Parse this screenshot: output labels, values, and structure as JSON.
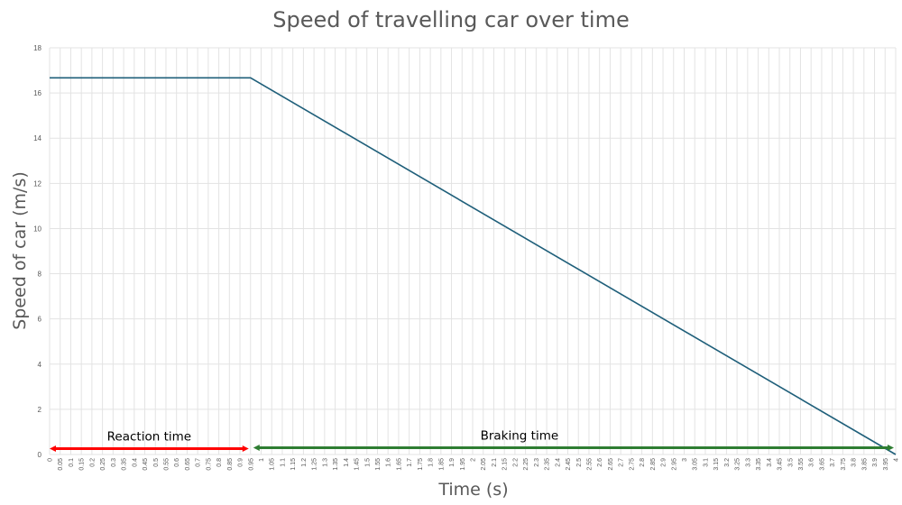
{
  "chart_data": {
    "type": "line",
    "title": "Speed of travelling car over time",
    "xlabel": "Time (s)",
    "ylabel": "Speed of car (m/s)",
    "ylim": [
      0,
      18
    ],
    "yticks": [
      0,
      2,
      4,
      6,
      8,
      10,
      12,
      14,
      16,
      18
    ],
    "xlim": [
      0,
      4
    ],
    "x_tick_step": 0.05,
    "x_tick_labels_shown": [
      "0",
      "0.05",
      "0.1",
      "0.15",
      "0.2",
      "0.25",
      "0.3",
      "0.35",
      "0.4",
      "0.45",
      "0.5",
      "0.55",
      "0.6",
      "0.65",
      "0.7",
      "0.75",
      "0.8",
      "0.85",
      "0.9",
      "0.95",
      "1",
      "1.05",
      "1.1",
      "1.15",
      "1.2",
      "1.25",
      "1.3",
      "1.35",
      "1.4",
      "1.45",
      "1.5",
      "1.55",
      "1.6",
      "1.65",
      "1.7",
      "1.75",
      "1.8",
      "1.85",
      "1.9",
      "1.95",
      "2",
      "2.05",
      "2.1",
      "2.15",
      "2.2",
      "2.25",
      "2.3",
      "2.35",
      "2.4",
      "2.45",
      "2.5",
      "2.55",
      "2.6",
      "2.65",
      "2.7",
      "2.75",
      "2.8",
      "2.85",
      "2.9",
      "2.95",
      "3",
      "3.05",
      "3.1",
      "3.15",
      "3.2",
      "3.25",
      "3.3",
      "3.35",
      "3.4",
      "3.45",
      "3.5",
      "3.55",
      "3.6",
      "3.65",
      "3.7",
      "3.75",
      "3.8",
      "3.85",
      "3.9",
      "3.95",
      "4"
    ],
    "grid": true,
    "series": [
      {
        "color": "#1f5f7a",
        "x": [
          0,
          0.95,
          4
        ],
        "y": [
          16.67,
          16.67,
          0
        ]
      }
    ],
    "annotations": [
      {
        "text": "Reaction time",
        "x_start": 0,
        "x_end": 0.95,
        "y": 0.3,
        "color": "#ff0000"
      },
      {
        "text": "Braking time",
        "x_start": 0.95,
        "x_end": 4,
        "y": 0.3,
        "color": "#2e7d32"
      }
    ]
  },
  "colors": {
    "grid": "#e3e3e3",
    "text": "#595959",
    "line": "#1f5f7a"
  }
}
